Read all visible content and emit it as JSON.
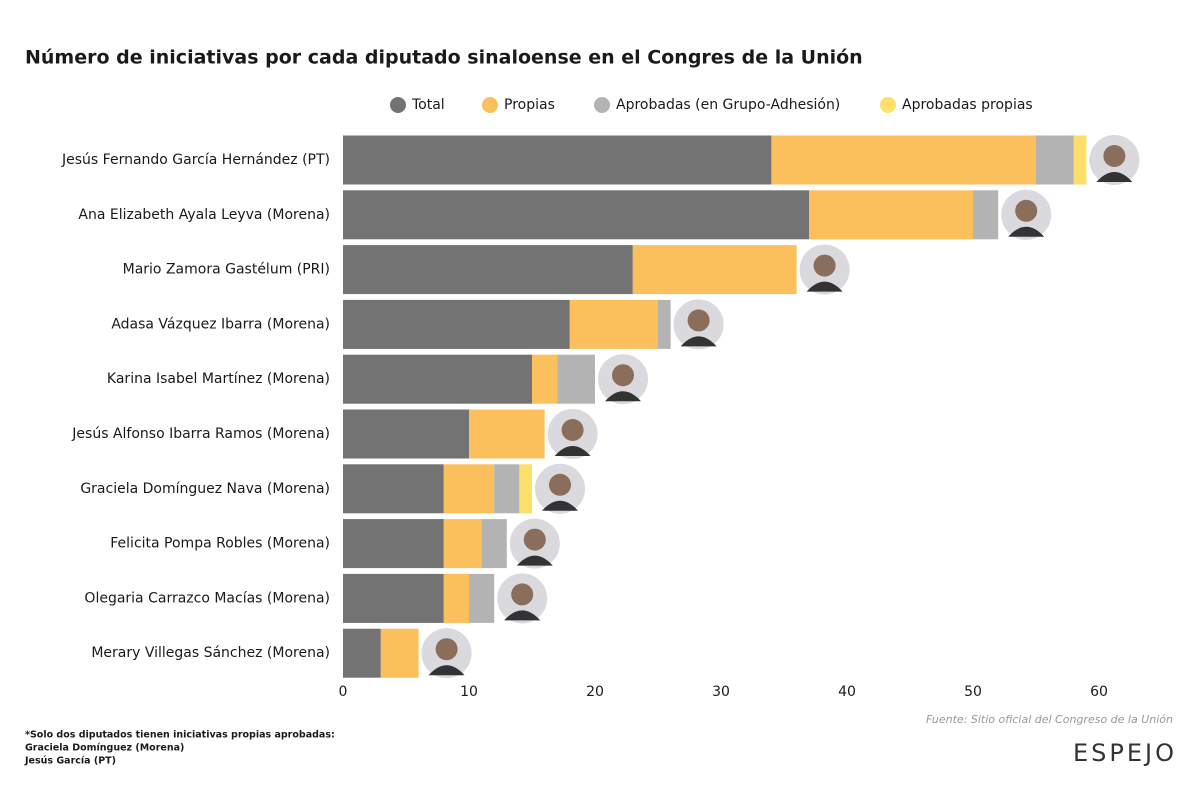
{
  "chart_data": {
    "type": "stacked_barh",
    "title": "Número de iniciativas por cada diputado sinaloense en el Congres de la Unión",
    "categories": [
      "Jesús Fernando García Hernández (PT)",
      "Ana Elizabeth Ayala Leyva (Morena)",
      "Mario Zamora Gastélum (PRI)",
      "Adasa Vázquez Ibarra (Morena)",
      "Karina Isabel Martínez (Morena)",
      "Jesús Alfonso Ibarra Ramos (Morena)",
      "Graciela Domínguez Nava (Morena)",
      "Felicita Pompa Robles (Morena)",
      "Olegaria Carrazco Macías (Morena)",
      "Merary Villegas Sánchez (Morena)"
    ],
    "series": [
      {
        "name": "Total",
        "color": "#737373",
        "values": [
          34,
          37,
          23,
          18,
          15,
          10,
          8,
          8,
          8,
          3
        ]
      },
      {
        "name": "Propias",
        "color": "#fbbf5c",
        "values": [
          21,
          13,
          13,
          7,
          2,
          6,
          4,
          3,
          2,
          3
        ]
      },
      {
        "name": "Aprobadas (en Grupo-Adhesión)",
        "color": "#b3b3b3",
        "values": [
          3,
          2,
          0,
          1,
          3,
          0,
          2,
          2,
          2,
          0
        ]
      },
      {
        "name": "Aprobadas propias",
        "color": "#fde06a",
        "values": [
          1,
          0,
          0,
          0,
          0,
          0,
          1,
          0,
          0,
          0
        ]
      }
    ],
    "xlim": [
      0,
      65
    ],
    "xticks": [
      0,
      10,
      20,
      30,
      40,
      50,
      60
    ],
    "grid": false,
    "legend": "top",
    "notes": [
      "*Solo dos diputados tienen iniciativas propias aprobadas:",
      "Graciela Domínguez (Morena)",
      "Jesús García (PT)"
    ],
    "source": "Fuente: Sitio oficial del Congreso de la Unión",
    "logo": "ESPEJO"
  }
}
